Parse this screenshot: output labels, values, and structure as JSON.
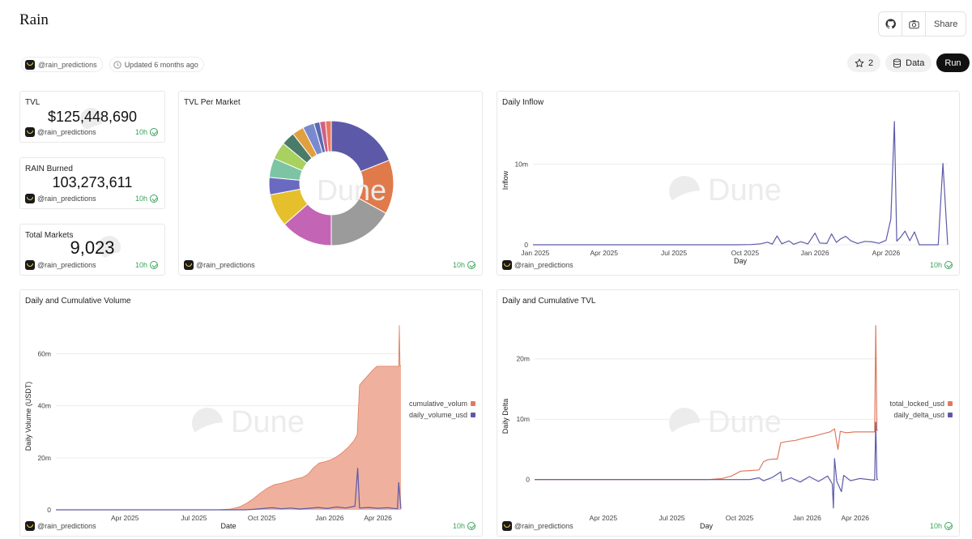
{
  "page": {
    "title": "Rain",
    "author": "@rain_predictions",
    "updated": "Updated 6 months ago",
    "top_actions": {
      "share_label": "Share"
    },
    "stars": "2",
    "data_label": "Data",
    "run_label": "Run"
  },
  "colors": {
    "accent_orange": "#e07a5f",
    "accent_purple": "#5c5aa8",
    "fresh_green": "#3aa35a",
    "area_fill": "#efb19d"
  },
  "watermark": "Dune",
  "cards": {
    "tvl": {
      "title": "TVL",
      "value": "$125,448,690",
      "author": "@rain_predictions",
      "age": "10h"
    },
    "rain_burned": {
      "title": "RAIN Burned",
      "value": "103,273,611",
      "author": "@rain_predictions",
      "age": "10h"
    },
    "total_markets": {
      "title": "Total Markets",
      "value": "9,023",
      "author": "@rain_predictions",
      "age": "10h"
    },
    "tvl_per_market": {
      "title": "TVL Per Market",
      "author": "@rain_predictions",
      "age": "10h"
    },
    "daily_inflow": {
      "title": "Daily Inflow",
      "author": "@rain_predictions",
      "age": "10h"
    },
    "daily_cum_volume": {
      "title": "Daily and Cumulative Volume",
      "author": "@rain_predictions",
      "age": "10h"
    },
    "daily_cum_tvl": {
      "title": "Daily and Cumulative TVL",
      "author": "@rain_predictions",
      "age": "10h"
    }
  },
  "chart_data": [
    {
      "id": "tvl_per_market",
      "type": "pie",
      "title": "TVL Per Market",
      "donut": true,
      "slices": [
        {
          "value": 19.0,
          "color": "#5c5aa8"
        },
        {
          "value": 14.0,
          "color": "#e07a4a"
        },
        {
          "value": 17.0,
          "color": "#9b9b9b"
        },
        {
          "value": 13.5,
          "color": "#c464b4"
        },
        {
          "value": 8.5,
          "color": "#e6c02c"
        },
        {
          "value": 4.5,
          "color": "#6a6ac0"
        },
        {
          "value": 5.0,
          "color": "#7cc4a4"
        },
        {
          "value": 4.5,
          "color": "#a8d160"
        },
        {
          "value": 3.5,
          "color": "#4a7a6a"
        },
        {
          "value": 3.0,
          "color": "#e0a040"
        },
        {
          "value": 3.0,
          "color": "#7a8ad0"
        },
        {
          "value": 1.5,
          "color": "#5a6ab0"
        },
        {
          "value": 1.5,
          "color": "#d0608a"
        },
        {
          "value": 1.5,
          "color": "#e87a60"
        }
      ]
    },
    {
      "id": "daily_inflow",
      "type": "line",
      "title": "Daily Inflow",
      "xlabel": "Day",
      "ylabel": "Inflow",
      "x_ticks": [
        "Jan 2025",
        "Apr 2025",
        "Jul 2025",
        "Oct 2025",
        "Jan 2026",
        "Apr 2026"
      ],
      "y_ticks": [
        "0",
        "10m"
      ],
      "ylim": [
        0,
        16000000
      ],
      "x_range": [
        0,
        17.5
      ],
      "series": [
        {
          "color": "#5c5aa8",
          "points": [
            [
              0,
              0
            ],
            [
              8.6,
              0
            ],
            [
              9.2,
              30000
            ],
            [
              9.6,
              120000
            ],
            [
              9.9,
              320000
            ],
            [
              10.1,
              80000
            ],
            [
              10.3,
              1100000
            ],
            [
              10.5,
              120000
            ],
            [
              10.8,
              480000
            ],
            [
              11.0,
              60000
            ],
            [
              11.3,
              380000
            ],
            [
              11.6,
              110000
            ],
            [
              11.9,
              1450000
            ],
            [
              12.1,
              220000
            ],
            [
              12.4,
              160000
            ],
            [
              12.6,
              1350000
            ],
            [
              12.8,
              300000
            ],
            [
              13.0,
              760000
            ],
            [
              13.2,
              1050000
            ],
            [
              13.4,
              520000
            ],
            [
              13.7,
              160000
            ],
            [
              14.0,
              420000
            ],
            [
              14.3,
              360000
            ],
            [
              14.6,
              180000
            ],
            [
              14.9,
              560000
            ],
            [
              15.1,
              3200000
            ],
            [
              15.25,
              15300000
            ],
            [
              15.35,
              450000
            ],
            [
              15.5,
              900000
            ],
            [
              15.7,
              1700000
            ],
            [
              15.9,
              500000
            ],
            [
              16.1,
              1600000
            ],
            [
              16.3,
              0
            ],
            [
              17.1,
              0
            ],
            [
              17.3,
              10100000
            ],
            [
              17.5,
              0
            ]
          ]
        }
      ]
    },
    {
      "id": "daily_cum_volume",
      "type": "area",
      "title": "Daily and Cumulative Volume",
      "xlabel": "Date",
      "ylabel": "Daily Volume (USDT)",
      "x_ticks": [
        "Apr 2025",
        "Jul 2025",
        "Oct 2025",
        "Jan 2026",
        "Apr 2026"
      ],
      "y_ticks": [
        "0",
        "20m",
        "40m",
        "60m"
      ],
      "ylim": [
        0,
        72000000
      ],
      "x_range": [
        0,
        15.0
      ],
      "legend_position": "right",
      "series": [
        {
          "name": "cumulative_volum",
          "kind": "area",
          "color": "#efb19d",
          "edge": "#e07a5f",
          "points": [
            [
              0,
              0
            ],
            [
              7.0,
              0
            ],
            [
              7.6,
              300000
            ],
            [
              8.0,
              1200000
            ],
            [
              8.3,
              2600000
            ],
            [
              8.6,
              4400000
            ],
            [
              8.9,
              6500000
            ],
            [
              9.2,
              8400000
            ],
            [
              9.5,
              9700000
            ],
            [
              9.8,
              10200000
            ],
            [
              10.1,
              11000000
            ],
            [
              10.4,
              11800000
            ],
            [
              10.7,
              12400000
            ],
            [
              10.95,
              13600000
            ],
            [
              11.2,
              16200000
            ],
            [
              11.45,
              18000000
            ],
            [
              11.7,
              18500000
            ],
            [
              11.95,
              19200000
            ],
            [
              12.2,
              20400000
            ],
            [
              12.45,
              22000000
            ],
            [
              12.7,
              24000000
            ],
            [
              12.95,
              26500000
            ],
            [
              13.1,
              29000000
            ],
            [
              13.2,
              48000000
            ],
            [
              13.35,
              49500000
            ],
            [
              13.55,
              51500000
            ],
            [
              13.75,
              53500000
            ],
            [
              13.95,
              55200000
            ],
            [
              14.9,
              55200000
            ],
            [
              14.93,
              71000000
            ],
            [
              14.96,
              55400000
            ],
            [
              15.0,
              55400000
            ]
          ]
        },
        {
          "name": "daily_volume_usd",
          "kind": "line",
          "color": "#5c5aa8",
          "points": [
            [
              0,
              0
            ],
            [
              8.2,
              0
            ],
            [
              8.6,
              200000
            ],
            [
              9.0,
              500000
            ],
            [
              9.4,
              800000
            ],
            [
              9.8,
              400000
            ],
            [
              10.2,
              700000
            ],
            [
              10.6,
              300000
            ],
            [
              11.0,
              600000
            ],
            [
              11.4,
              900000
            ],
            [
              11.8,
              500000
            ],
            [
              12.2,
              1100000
            ],
            [
              12.6,
              700000
            ],
            [
              13.0,
              1400000
            ],
            [
              13.12,
              16000000
            ],
            [
              13.2,
              700000
            ],
            [
              13.6,
              900000
            ],
            [
              14.0,
              600000
            ],
            [
              14.4,
              800000
            ],
            [
              14.85,
              400000
            ],
            [
              14.9,
              10500000
            ],
            [
              15.0,
              400000
            ]
          ]
        }
      ]
    },
    {
      "id": "daily_cum_tvl",
      "type": "line",
      "title": "Daily and Cumulative TVL",
      "xlabel": "Day",
      "ylabel": "Daily Delta",
      "x_ticks": [
        "Apr 2025",
        "Jul 2025",
        "Oct 2025",
        "Jan 2026",
        "Apr 2026"
      ],
      "y_ticks": [
        "0",
        "10m",
        "20m"
      ],
      "ylim": [
        -5000000,
        26000000
      ],
      "x_range": [
        0,
        15.0
      ],
      "legend_position": "right",
      "series": [
        {
          "name": "total_locked_usd",
          "color": "#e07a5f",
          "points": [
            [
              0,
              0
            ],
            [
              7.6,
              0
            ],
            [
              8.2,
              200000
            ],
            [
              8.6,
              600000
            ],
            [
              9.0,
              1400000
            ],
            [
              9.4,
              1500000
            ],
            [
              9.8,
              1600000
            ],
            [
              10.0,
              3000000
            ],
            [
              10.2,
              3300000
            ],
            [
              10.4,
              3400000
            ],
            [
              10.6,
              3400000
            ],
            [
              10.75,
              6100000
            ],
            [
              11.0,
              6300000
            ],
            [
              11.4,
              6500000
            ],
            [
              11.8,
              6900000
            ],
            [
              12.2,
              7200000
            ],
            [
              12.6,
              7600000
            ],
            [
              12.9,
              7900000
            ],
            [
              13.1,
              8400000
            ],
            [
              13.25,
              5000000
            ],
            [
              13.35,
              8000000
            ],
            [
              13.55,
              7800000
            ],
            [
              13.75,
              7800000
            ],
            [
              13.95,
              7900000
            ],
            [
              14.3,
              7900000
            ],
            [
              14.85,
              7900000
            ],
            [
              14.9,
              25500000
            ],
            [
              14.95,
              8200000
            ],
            [
              15.0,
              8200000
            ]
          ]
        },
        {
          "name": "daily_delta_usd",
          "color": "#5c5aa8",
          "points": [
            [
              0,
              0
            ],
            [
              9.4,
              0
            ],
            [
              9.8,
              300000
            ],
            [
              10.0,
              -200000
            ],
            [
              10.4,
              400000
            ],
            [
              10.75,
              1300000
            ],
            [
              10.8,
              -300000
            ],
            [
              11.2,
              300000
            ],
            [
              11.6,
              -400000
            ],
            [
              12.0,
              500000
            ],
            [
              12.4,
              -300000
            ],
            [
              12.8,
              600000
            ],
            [
              13.0,
              -700000
            ],
            [
              13.05,
              -4700000
            ],
            [
              13.1,
              3500000
            ],
            [
              13.2,
              -300000
            ],
            [
              13.4,
              -2000000
            ],
            [
              13.5,
              700000
            ],
            [
              13.8,
              -200000
            ],
            [
              14.2,
              200000
            ],
            [
              14.85,
              -100000
            ],
            [
              14.9,
              9500000
            ],
            [
              14.95,
              0
            ],
            [
              15.0,
              0
            ]
          ]
        }
      ]
    }
  ]
}
